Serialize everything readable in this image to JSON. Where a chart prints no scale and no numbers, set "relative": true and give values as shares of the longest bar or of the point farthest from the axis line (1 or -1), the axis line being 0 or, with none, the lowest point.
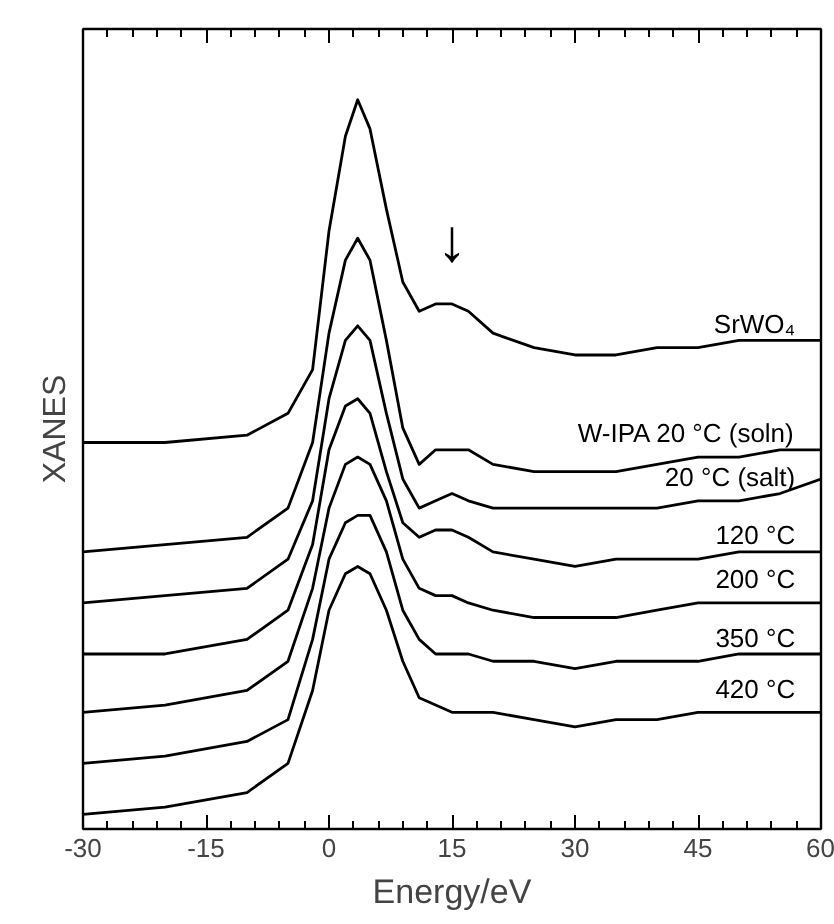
{
  "chart_data": {
    "type": "line",
    "relative": true,
    "xlabel": "Energy/eV",
    "ylabel": "XANES",
    "xlim": [
      -30,
      60
    ],
    "xticks": [
      -30,
      -15,
      0,
      15,
      30,
      45,
      60
    ],
    "grid": false,
    "tick_labels": "x",
    "marker": "none",
    "line_style": "solid",
    "x": [
      -30,
      -20,
      -10,
      -5,
      -2,
      0,
      2,
      3.5,
      5,
      7,
      9,
      11,
      13,
      15,
      17,
      20,
      25,
      30,
      35,
      40,
      45,
      50,
      55,
      60
    ],
    "series": [
      {
        "name": "SrWO₄",
        "color": "#000000",
        "values": [
          0.53,
          0.53,
          0.54,
          0.57,
          0.63,
          0.82,
          0.95,
          1.0,
          0.96,
          0.85,
          0.75,
          0.71,
          0.72,
          0.72,
          0.71,
          0.68,
          0.66,
          0.65,
          0.65,
          0.66,
          0.66,
          0.67,
          0.67,
          0.67
        ]
      },
      {
        "name": "W-IPA 20 °C (soln)",
        "color": "#000000",
        "values": [
          0.38,
          0.39,
          0.4,
          0.44,
          0.53,
          0.68,
          0.78,
          0.81,
          0.78,
          0.67,
          0.55,
          0.5,
          0.52,
          0.52,
          0.52,
          0.5,
          0.49,
          0.49,
          0.49,
          0.5,
          0.51,
          0.51,
          0.52,
          0.52
        ]
      },
      {
        "name": "20 °C (salt)",
        "color": "#000000",
        "values": [
          0.31,
          0.32,
          0.33,
          0.37,
          0.45,
          0.59,
          0.67,
          0.69,
          0.67,
          0.57,
          0.48,
          0.44,
          0.45,
          0.46,
          0.45,
          0.44,
          0.44,
          0.44,
          0.44,
          0.44,
          0.45,
          0.45,
          0.46,
          0.48
        ]
      },
      {
        "name": "120 °C",
        "color": "#000000",
        "values": [
          0.24,
          0.24,
          0.26,
          0.3,
          0.39,
          0.52,
          0.58,
          0.59,
          0.57,
          0.49,
          0.42,
          0.4,
          0.41,
          0.41,
          0.4,
          0.38,
          0.37,
          0.36,
          0.37,
          0.37,
          0.37,
          0.38,
          0.38,
          0.38
        ]
      },
      {
        "name": "200 °C",
        "color": "#000000",
        "values": [
          0.16,
          0.17,
          0.19,
          0.23,
          0.33,
          0.44,
          0.5,
          0.51,
          0.5,
          0.45,
          0.37,
          0.33,
          0.32,
          0.32,
          0.31,
          0.3,
          0.29,
          0.29,
          0.29,
          0.3,
          0.31,
          0.31,
          0.31,
          0.31
        ]
      },
      {
        "name": "350 °C",
        "color": "#000000",
        "values": [
          0.09,
          0.1,
          0.12,
          0.15,
          0.26,
          0.37,
          0.42,
          0.43,
          0.43,
          0.38,
          0.3,
          0.26,
          0.24,
          0.24,
          0.24,
          0.23,
          0.23,
          0.22,
          0.23,
          0.23,
          0.23,
          0.24,
          0.24,
          0.24
        ]
      },
      {
        "name": "420 °C",
        "color": "#000000",
        "values": [
          0.02,
          0.03,
          0.05,
          0.09,
          0.19,
          0.3,
          0.35,
          0.36,
          0.35,
          0.3,
          0.23,
          0.18,
          0.17,
          0.16,
          0.16,
          0.16,
          0.15,
          0.14,
          0.15,
          0.15,
          0.16,
          0.16,
          0.16,
          0.16
        ]
      }
    ],
    "annotations": [
      "↓"
    ]
  }
}
